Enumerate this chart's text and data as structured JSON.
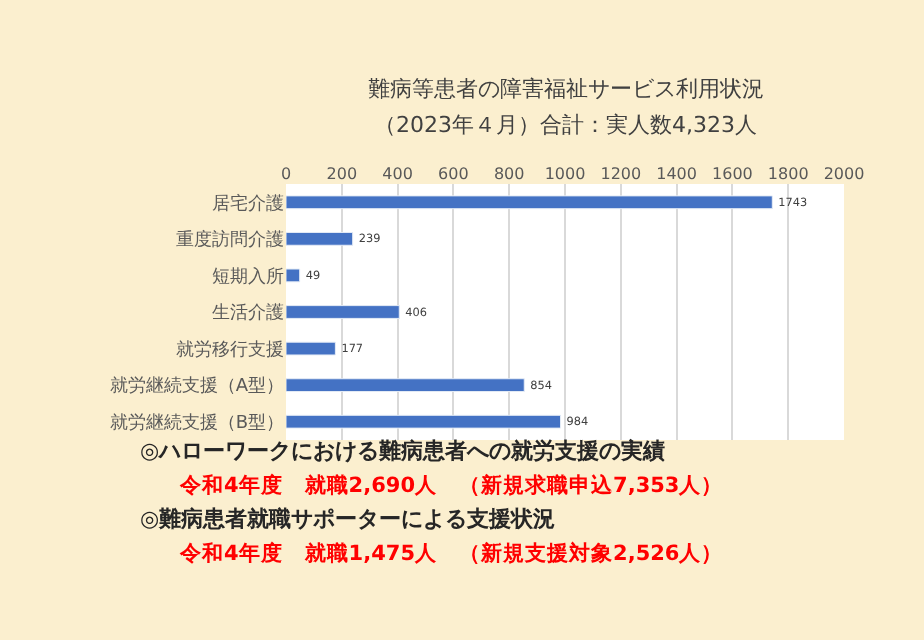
{
  "chart_data": {
    "type": "bar",
    "orientation": "horizontal",
    "title": "難病等患者の障害福祉サービス利用状況",
    "subtitle": "（2023年４月）合計：実人数4,323人",
    "categories": [
      "居宅介護",
      "重度訪問介護",
      "短期入所",
      "生活介護",
      "就労移行支援",
      "就労継続支援（A型）",
      "就労継続支援（B型）"
    ],
    "values": [
      1743,
      239,
      49,
      406,
      177,
      854,
      984
    ],
    "color": "#4472c4",
    "xlim": [
      0,
      2000
    ],
    "xticks": [
      0,
      200,
      400,
      600,
      800,
      1000,
      1200,
      1400,
      1600,
      1800,
      2000
    ],
    "grid": "x",
    "data_labels": true,
    "legend": false,
    "annotations": [
      "◎ハローワークにおける難病患者への就労支援の実績",
      "令和4年度　就職2,690人　（新規求職申込7,353人）",
      "◎難病患者就職サポーターによる支援状況",
      "令和4年度　就職1,475人　（新規支援対象2,526人）"
    ]
  }
}
